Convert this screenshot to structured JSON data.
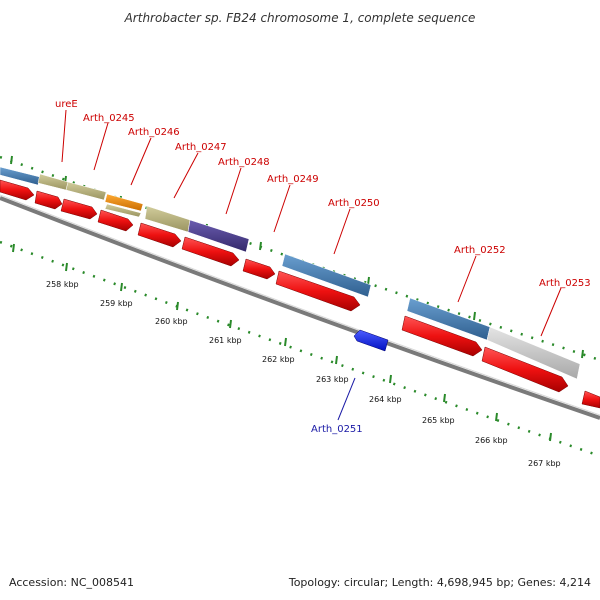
{
  "title": "Arthrobacter sp. FB24 chromosome 1, complete sequence",
  "footer": {
    "accession": "Accession: NC_008541",
    "topology": "Topology: circular; Length: 4,698,945 bp; Genes: 4,214"
  },
  "colors": {
    "gene_red": "#ee1111",
    "gene_blue": "#0b1de6",
    "feature_steelblue": "#4a7fb5",
    "feature_khaki": "#bdb781",
    "feature_orange": "#f08a00",
    "feature_purple": "#4e3f8e",
    "feature_grey": "#c8c8c8",
    "tick_green": "#2a8a2a",
    "backbone_grey": "#777777",
    "label_red": "#cc0000",
    "label_blue": "#1a1aa6"
  },
  "gene_labels": [
    {
      "name": "ureE",
      "color": "red"
    },
    {
      "name": "Arth_0245",
      "color": "red"
    },
    {
      "name": "Arth_0246",
      "color": "red"
    },
    {
      "name": "Arth_0247",
      "color": "red"
    },
    {
      "name": "Arth_0248",
      "color": "red"
    },
    {
      "name": "Arth_0249",
      "color": "red"
    },
    {
      "name": "Arth_0250",
      "color": "red"
    },
    {
      "name": "Arth_0252",
      "color": "red"
    },
    {
      "name": "Arth_0253",
      "color": "red"
    },
    {
      "name": "Arth_0251",
      "color": "blue"
    }
  ],
  "kbp_labels": [
    "258 kbp",
    "259 kbp",
    "260 kbp",
    "261 kbp",
    "262 kbp",
    "263 kbp",
    "264 kbp",
    "265 kbp",
    "266 kbp",
    "267 kbp"
  ]
}
